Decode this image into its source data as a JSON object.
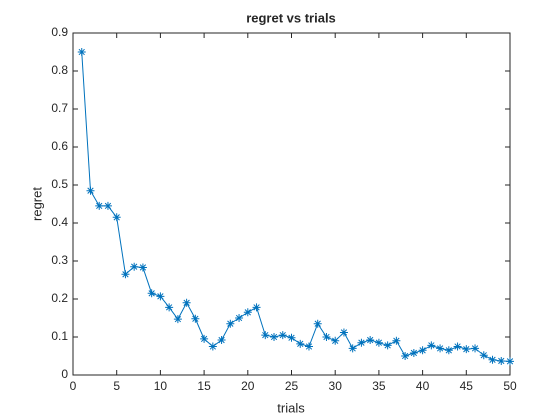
{
  "chart_data": {
    "type": "line",
    "title": "regret vs trials",
    "x_label": "trials",
    "y_label": "regret",
    "x": [
      1,
      2,
      3,
      4,
      5,
      6,
      7,
      8,
      9,
      10,
      11,
      12,
      13,
      14,
      15,
      16,
      17,
      18,
      19,
      20,
      21,
      22,
      23,
      24,
      25,
      26,
      27,
      28,
      29,
      30,
      31,
      32,
      33,
      34,
      35,
      36,
      37,
      38,
      39,
      40,
      41,
      42,
      43,
      44,
      45,
      46,
      47,
      48,
      49,
      50
    ],
    "series": [
      {
        "name": "regret",
        "color": "#0072bd",
        "marker": "asterisk",
        "values": [
          0.85,
          0.485,
          0.445,
          0.445,
          0.415,
          0.265,
          0.285,
          0.283,
          0.215,
          0.207,
          0.178,
          0.147,
          0.19,
          0.148,
          0.095,
          0.075,
          0.092,
          0.135,
          0.15,
          0.165,
          0.178,
          0.105,
          0.1,
          0.105,
          0.098,
          0.082,
          0.075,
          0.135,
          0.1,
          0.09,
          0.112,
          0.07,
          0.085,
          0.092,
          0.085,
          0.078,
          0.09,
          0.05,
          0.058,
          0.065,
          0.078,
          0.07,
          0.065,
          0.075,
          0.068,
          0.07,
          0.052,
          0.04,
          0.037,
          0.036
        ]
      }
    ],
    "xlim": [
      0,
      50
    ],
    "xticks": [
      0,
      5,
      10,
      15,
      20,
      25,
      30,
      35,
      40,
      45,
      50
    ],
    "ylim": [
      0,
      0.9
    ],
    "yticks": [
      0,
      0.1,
      0.2,
      0.3,
      0.4,
      0.5,
      0.6,
      0.7,
      0.8,
      0.9
    ],
    "grid": false
  }
}
